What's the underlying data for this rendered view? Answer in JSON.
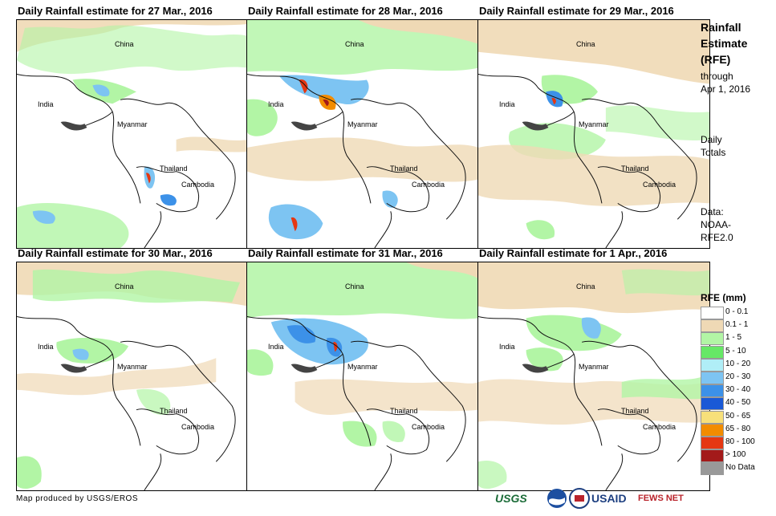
{
  "panels": [
    {
      "title": "Daily Rainfall estimate for 27 Mar., 2016",
      "labels": {
        "china": "China",
        "india": "India",
        "myanmar": "Myanmar",
        "thailand": "Thailand",
        "cambodia": "Cambodia"
      }
    },
    {
      "title": "Daily Rainfall estimate for 28 Mar., 2016",
      "labels": {
        "china": "China",
        "india": "India",
        "myanmar": "Myanmar",
        "thailand": "Thailand",
        "cambodia": "Cambodia"
      }
    },
    {
      "title": "Daily Rainfall estimate for 29 Mar., 2016",
      "labels": {
        "china": "China",
        "india": "India",
        "myanmar": "Myanmar",
        "thailand": "Thailand",
        "cambodia": "Cambodia"
      }
    },
    {
      "title": "Daily Rainfall estimate for 30 Mar., 2016",
      "labels": {
        "china": "China",
        "india": "India",
        "myanmar": "Myanmar",
        "thailand": "Thailand",
        "cambodia": "Cambodia"
      }
    },
    {
      "title": "Daily Rainfall estimate for 31 Mar., 2016",
      "labels": {
        "china": "China",
        "india": "India",
        "myanmar": "Myanmar",
        "thailand": "Thailand",
        "cambodia": "Cambodia"
      }
    },
    {
      "title": "Daily Rainfall estimate for 1 Apr., 2016",
      "labels": {
        "china": "China",
        "india": "India",
        "myanmar": "Myanmar",
        "thailand": "Thailand",
        "cambodia": "Cambodia"
      }
    }
  ],
  "sidebar": {
    "title_lines": [
      "Rainfall",
      "Estimate",
      "(RFE)"
    ],
    "through_lines": [
      "through",
      "Apr 1, 2016"
    ],
    "daily_lines": [
      "Daily",
      "Totals"
    ],
    "data_lines": [
      "Data:",
      "NOAA-",
      "RFE2.0"
    ]
  },
  "legend": {
    "title": "RFE (mm)",
    "items": [
      {
        "label": "0 - 0.1",
        "color": "#ffffff"
      },
      {
        "label": "0.1 - 1",
        "color": "#efd9b5"
      },
      {
        "label": "1 - 5",
        "color": "#b2f5a5"
      },
      {
        "label": "5 - 10",
        "color": "#66e866"
      },
      {
        "label": "10 - 20",
        "color": "#b0eef7"
      },
      {
        "label": "20 - 30",
        "color": "#7dc4f2"
      },
      {
        "label": "30 - 40",
        "color": "#3c91e8"
      },
      {
        "label": "40 - 50",
        "color": "#1a59d6"
      },
      {
        "label": "50 - 65",
        "color": "#f7e07a"
      },
      {
        "label": "65 - 80",
        "color": "#f28c00"
      },
      {
        "label": "80 - 100",
        "color": "#e53712"
      },
      {
        "label": "> 100",
        "color": "#a31a1a"
      },
      {
        "label": "No Data",
        "color": "#999999"
      }
    ]
  },
  "credit": "Map produced by USGS/EROS",
  "logos": {
    "usgs": "USGS",
    "usaid": "USAID",
    "fewsnet": "FEWS NET"
  }
}
